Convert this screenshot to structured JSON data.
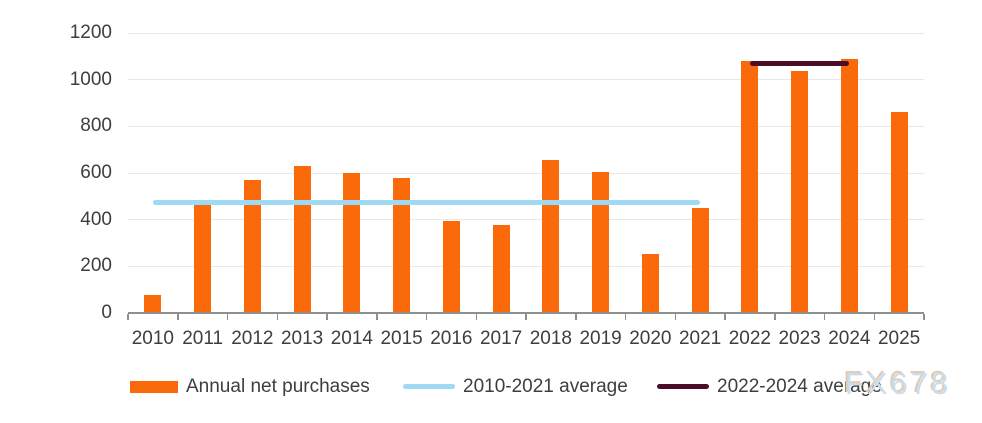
{
  "watermark": "FX678",
  "colors": {
    "bar": "#FA6A0A",
    "avg_2010_2021": "#9FD9F4",
    "avg_2022_2024": "#4A0E28",
    "gridline": "#E8E8E8",
    "axis": "#8F8F8F",
    "label_text": "#3E3E3E",
    "watermark_fill": "#C9DDEC",
    "watermark_shadow": "#E2CCB5"
  },
  "chart_data": {
    "type": "bar",
    "title": "",
    "xlabel": "",
    "ylabel": "",
    "categories": [
      "2010",
      "2011",
      "2012",
      "2013",
      "2014",
      "2015",
      "2016",
      "2017",
      "2018",
      "2019",
      "2020",
      "2021",
      "2022",
      "2023",
      "2024",
      "2025"
    ],
    "series": [
      {
        "name": "Annual net purchases",
        "type": "bar",
        "color": "#FA6A0A",
        "values": [
          79,
          465,
          569,
          629,
          601,
          580,
          395,
          379,
          656,
          605,
          255,
          450,
          1082,
          1037,
          1089,
          860
        ]
      },
      {
        "name": "2010-2021 average",
        "type": "hline",
        "color": "#9FD9F4",
        "value": 473,
        "span": [
          "2010",
          "2021"
        ]
      },
      {
        "name": "2022-2024 average",
        "type": "hline",
        "color": "#4A0E28",
        "value": 1069,
        "span": [
          "2022",
          "2024"
        ]
      }
    ],
    "ylim": [
      0,
      1200
    ],
    "yticks": [
      0,
      200,
      400,
      600,
      800,
      1000,
      1200
    ],
    "grid": "horizontal",
    "legend_position": "bottom"
  }
}
